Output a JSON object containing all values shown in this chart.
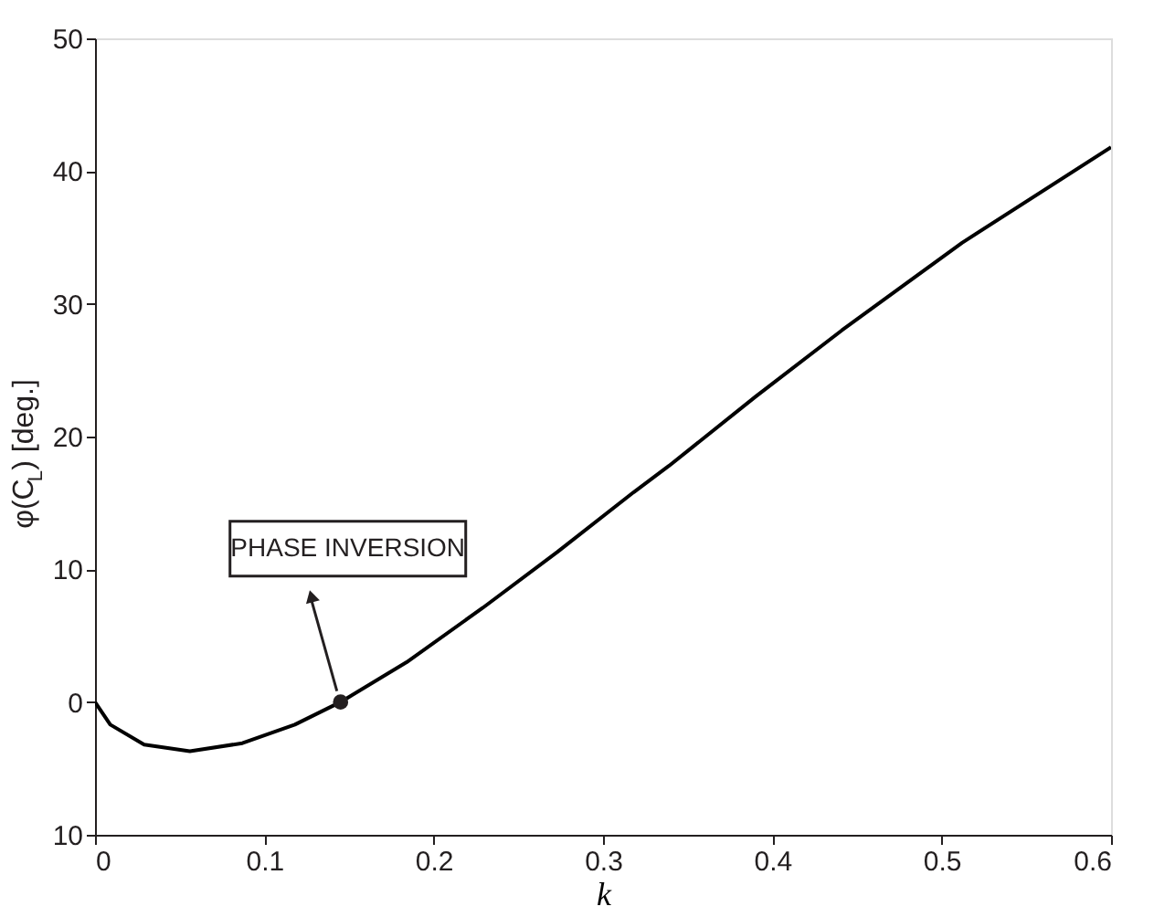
{
  "chart_data": {
    "type": "line",
    "xlabel": "k",
    "ylabel": "φ(C$_{L}$) [deg.]",
    "x": [
      0,
      0.009,
      0.029,
      0.056,
      0.087,
      0.118,
      0.145,
      0.184,
      0.229,
      0.273,
      0.318,
      0.339,
      0.39,
      0.441,
      0.512,
      0.6
    ],
    "series": [
      {
        "color": "#000000",
        "values": [
          0,
          -1.7,
          -3.2,
          -3.7,
          -3.1,
          -1.7,
          0,
          3.0,
          7.1,
          11.3,
          15.8,
          17.8,
          23.0,
          28.0,
          34.6,
          41.8
        ]
      },
      {
        "type": "scatter",
        "marker": "circle",
        "color": "#231f20",
        "x": [
          0.145
        ],
        "values": [
          0
        ]
      }
    ],
    "xlim": [
      0,
      0.6
    ],
    "xticks": [
      0,
      0.1,
      0.2,
      0.3,
      0.4,
      0.5,
      0.6
    ],
    "ylim": [
      -10,
      50
    ],
    "yticks": [
      {
        "value": -10,
        "label": "10"
      },
      0,
      10,
      20,
      30,
      40,
      50
    ],
    "grid": false,
    "marker": "none",
    "line_style": "solid",
    "annotations": [
      "PHASE INVERSION"
    ]
  }
}
